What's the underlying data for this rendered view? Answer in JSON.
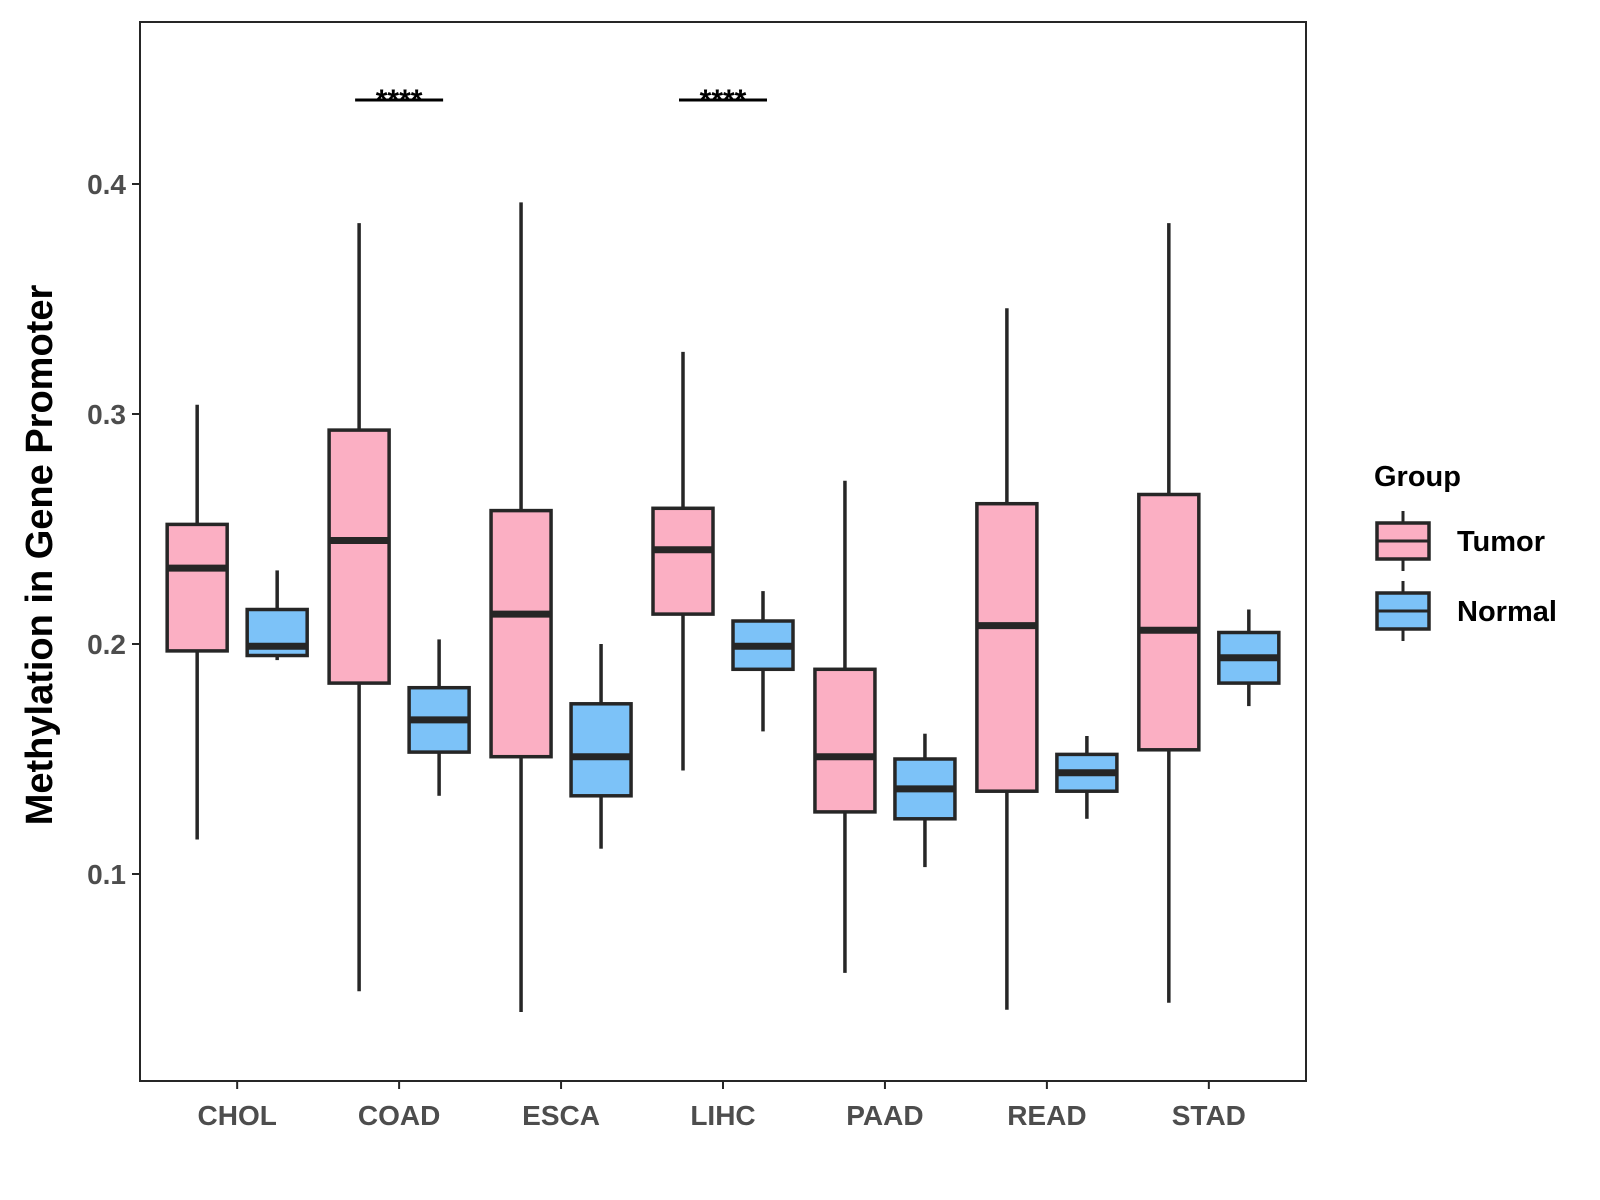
{
  "chart_data": {
    "type": "boxplot",
    "title": "",
    "xlabel": "",
    "ylabel": "Methylation in Gene Promoter",
    "ylim": [
      0.02,
      0.46
    ],
    "yticks": [
      0.1,
      0.2,
      0.3,
      0.4
    ],
    "ytick_labels": [
      "0.1",
      "0.2",
      "0.3",
      "0.4"
    ],
    "categories": [
      "CHOL",
      "COAD",
      "ESCA",
      "LIHC",
      "PAAD",
      "READ",
      "STAD"
    ],
    "legend": {
      "title": "Group",
      "position": "right",
      "entries": [
        {
          "name": "Tumor",
          "color": "#FBAFC3"
        },
        {
          "name": "Normal",
          "color": "#7CC2F8"
        }
      ]
    },
    "series": [
      {
        "name": "Tumor",
        "color": "#FBAFC3",
        "boxes": [
          {
            "category": "CHOL",
            "min": 0.115,
            "q1": 0.197,
            "median": 0.233,
            "q3": 0.252,
            "max": 0.304
          },
          {
            "category": "COAD",
            "min": 0.049,
            "q1": 0.183,
            "median": 0.245,
            "q3": 0.293,
            "max": 0.383
          },
          {
            "category": "ESCA",
            "min": 0.04,
            "q1": 0.151,
            "median": 0.213,
            "q3": 0.258,
            "max": 0.392
          },
          {
            "category": "LIHC",
            "min": 0.145,
            "q1": 0.213,
            "median": 0.241,
            "q3": 0.259,
            "max": 0.327
          },
          {
            "category": "PAAD",
            "min": 0.057,
            "q1": 0.127,
            "median": 0.151,
            "q3": 0.189,
            "max": 0.271
          },
          {
            "category": "READ",
            "min": 0.041,
            "q1": 0.136,
            "median": 0.208,
            "q3": 0.261,
            "max": 0.346
          },
          {
            "category": "STAD",
            "min": 0.044,
            "q1": 0.154,
            "median": 0.206,
            "q3": 0.265,
            "max": 0.383
          }
        ]
      },
      {
        "name": "Normal",
        "color": "#7CC2F8",
        "boxes": [
          {
            "category": "CHOL",
            "min": 0.193,
            "q1": 0.195,
            "median": 0.199,
            "q3": 0.215,
            "max": 0.232
          },
          {
            "category": "COAD",
            "min": 0.134,
            "q1": 0.153,
            "median": 0.167,
            "q3": 0.181,
            "max": 0.202
          },
          {
            "category": "ESCA",
            "min": 0.111,
            "q1": 0.134,
            "median": 0.151,
            "q3": 0.174,
            "max": 0.2
          },
          {
            "category": "LIHC",
            "min": 0.162,
            "q1": 0.189,
            "median": 0.199,
            "q3": 0.21,
            "max": 0.223
          },
          {
            "category": "PAAD",
            "min": 0.103,
            "q1": 0.124,
            "median": 0.137,
            "q3": 0.15,
            "max": 0.161
          },
          {
            "category": "READ",
            "min": 0.124,
            "q1": 0.136,
            "median": 0.144,
            "q3": 0.152,
            "max": 0.16
          },
          {
            "category": "STAD",
            "min": 0.173,
            "q1": 0.183,
            "median": 0.194,
            "q3": 0.205,
            "max": 0.215
          }
        ]
      }
    ],
    "annotations": [
      {
        "category": "COAD",
        "text": "****",
        "y": 0.44
      },
      {
        "category": "LIHC",
        "text": "****",
        "y": 0.44
      }
    ],
    "grid": false,
    "colors": {
      "box_outline": "#262626",
      "tick_text": "#4d4d4d",
      "panel_border": "#262626"
    }
  }
}
